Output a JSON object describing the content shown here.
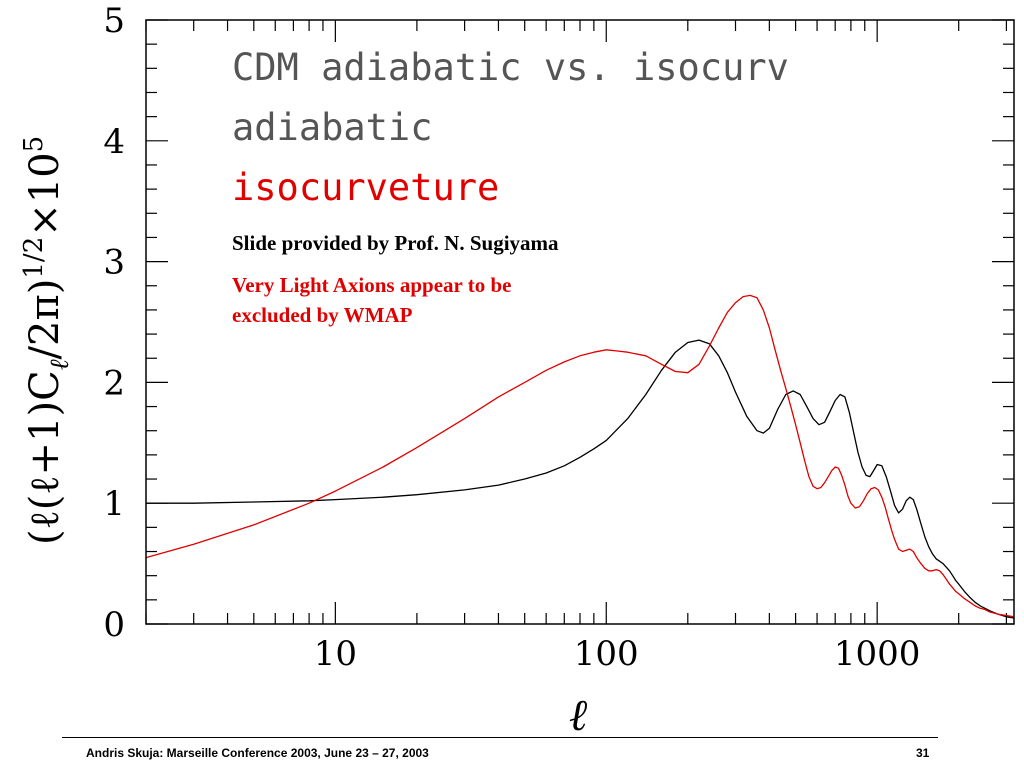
{
  "chart_data": {
    "type": "line",
    "title_lines": [
      {
        "text": "CDM adiabatic vs. isocurv",
        "color": "#555555"
      },
      {
        "text": "adiabatic",
        "color": "#555555"
      },
      {
        "text": "isocurveture",
        "color": "#e00000"
      }
    ],
    "annotations": [
      {
        "text": "Slide provided by Prof. N. Sugiyama",
        "color": "#000000"
      },
      {
        "text": "Very Light Axions appear to be",
        "color": "#e00000"
      },
      {
        "text": "excluded by WMAP",
        "color": "#e00000"
      }
    ],
    "ylabel": "(ℓ(ℓ+1)C",
    "ylabel_sub": "ℓ",
    "ylabel_tail": "/2π)",
    "ylabel_exp": "1/2",
    "ylabel_times": "×10",
    "ylabel_exp2": "5",
    "xlabel": "ℓ",
    "x_scale": "log",
    "xlim": [
      2,
      3200
    ],
    "ylim": [
      0,
      5
    ],
    "x_ticks": [
      {
        "value": 10,
        "label": "10"
      },
      {
        "value": 100,
        "label": "100"
      },
      {
        "value": 1000,
        "label": "1000"
      }
    ],
    "y_ticks": [
      {
        "value": 0,
        "label": "0"
      },
      {
        "value": 1,
        "label": "1"
      },
      {
        "value": 2,
        "label": "2"
      },
      {
        "value": 3,
        "label": "3"
      },
      {
        "value": 4,
        "label": "4"
      },
      {
        "value": 5,
        "label": "5"
      }
    ],
    "series": [
      {
        "color": "#000000",
        "x": [
          2,
          3,
          5,
          8,
          10,
          15,
          20,
          30,
          40,
          50,
          60,
          70,
          80,
          90,
          100,
          120,
          140,
          160,
          180,
          200,
          220,
          240,
          260,
          280,
          300,
          330,
          360,
          380,
          400,
          430,
          460,
          490,
          520,
          550,
          580,
          610,
          640,
          670,
          700,
          730,
          760,
          790,
          820,
          850,
          880,
          910,
          940,
          970,
          1000,
          1040,
          1080,
          1120,
          1160,
          1200,
          1240,
          1280,
          1320,
          1360,
          1400,
          1450,
          1500,
          1550,
          1600,
          1650,
          1700,
          1750,
          1800,
          1850,
          1900,
          1950,
          2000,
          2100,
          2200,
          2300,
          2400,
          2500,
          2600,
          2800,
          3000,
          3200
        ],
        "y": [
          1.0,
          1.0,
          1.01,
          1.02,
          1.03,
          1.05,
          1.07,
          1.11,
          1.15,
          1.2,
          1.25,
          1.31,
          1.38,
          1.45,
          1.52,
          1.7,
          1.9,
          2.1,
          2.25,
          2.33,
          2.35,
          2.32,
          2.22,
          2.08,
          1.92,
          1.72,
          1.6,
          1.58,
          1.62,
          1.78,
          1.9,
          1.93,
          1.9,
          1.8,
          1.7,
          1.65,
          1.67,
          1.76,
          1.85,
          1.9,
          1.88,
          1.75,
          1.58,
          1.42,
          1.3,
          1.23,
          1.22,
          1.27,
          1.32,
          1.31,
          1.22,
          1.1,
          0.98,
          0.92,
          0.95,
          1.02,
          1.05,
          1.03,
          0.95,
          0.83,
          0.72,
          0.64,
          0.58,
          0.54,
          0.52,
          0.5,
          0.47,
          0.44,
          0.4,
          0.36,
          0.33,
          0.27,
          0.22,
          0.18,
          0.15,
          0.13,
          0.11,
          0.08,
          0.06,
          0.05
        ]
      },
      {
        "color": "#e00000",
        "x": [
          2,
          3,
          5,
          8,
          10,
          15,
          20,
          30,
          40,
          50,
          60,
          70,
          80,
          90,
          100,
          110,
          120,
          140,
          160,
          180,
          200,
          220,
          240,
          260,
          280,
          300,
          320,
          340,
          360,
          380,
          400,
          420,
          440,
          460,
          480,
          500,
          520,
          540,
          560,
          580,
          600,
          620,
          640,
          660,
          680,
          700,
          720,
          740,
          760,
          780,
          800,
          830,
          860,
          890,
          920,
          950,
          980,
          1010,
          1040,
          1070,
          1100,
          1130,
          1160,
          1200,
          1240,
          1280,
          1320,
          1360,
          1400,
          1450,
          1500,
          1550,
          1600,
          1650,
          1700,
          1750,
          1800,
          1850,
          1900,
          1950,
          2000,
          2100,
          2200,
          2300,
          2400,
          2500,
          2600,
          2800,
          3000,
          3200
        ],
        "y": [
          0.55,
          0.66,
          0.82,
          1.0,
          1.1,
          1.3,
          1.46,
          1.7,
          1.88,
          2.0,
          2.1,
          2.17,
          2.22,
          2.25,
          2.27,
          2.26,
          2.25,
          2.22,
          2.15,
          2.09,
          2.08,
          2.15,
          2.3,
          2.45,
          2.58,
          2.66,
          2.71,
          2.72,
          2.7,
          2.6,
          2.45,
          2.27,
          2.1,
          1.95,
          1.8,
          1.65,
          1.5,
          1.35,
          1.22,
          1.14,
          1.12,
          1.13,
          1.17,
          1.22,
          1.27,
          1.3,
          1.29,
          1.23,
          1.15,
          1.06,
          1.0,
          0.96,
          0.97,
          1.02,
          1.08,
          1.12,
          1.13,
          1.11,
          1.05,
          0.97,
          0.87,
          0.78,
          0.7,
          0.62,
          0.6,
          0.61,
          0.62,
          0.6,
          0.55,
          0.5,
          0.46,
          0.44,
          0.44,
          0.45,
          0.44,
          0.41,
          0.37,
          0.33,
          0.3,
          0.27,
          0.25,
          0.21,
          0.18,
          0.15,
          0.13,
          0.12,
          0.1,
          0.08,
          0.07,
          0.06
        ]
      }
    ]
  },
  "footer": {
    "left": "Andris Skuja: Marseille Conference 2003, June 23 – 27, 2003",
    "right": "31"
  }
}
